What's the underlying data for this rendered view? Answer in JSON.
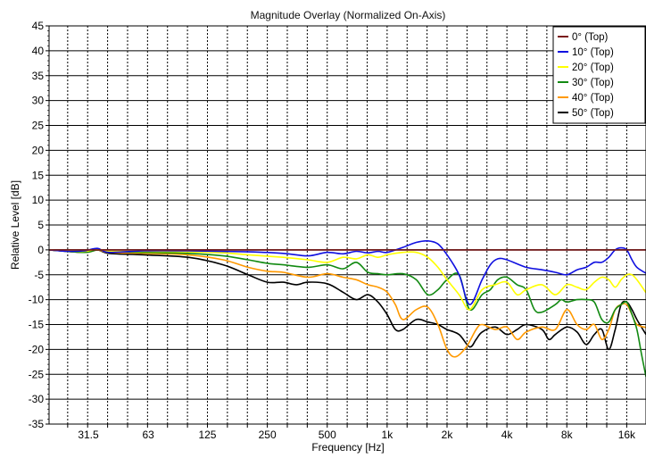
{
  "chart_data": {
    "type": "line",
    "title": "Magnitude Overlay (Normalized On-Axis)",
    "xlabel": "Frequency [Hz]",
    "ylabel": "Relative Level [dB]",
    "xscale": "log",
    "xlim": [
      20,
      20000
    ],
    "ylim": [
      -35,
      45
    ],
    "xticks": [
      {
        "value": 31.5,
        "label": "31.5"
      },
      {
        "value": 63,
        "label": "63"
      },
      {
        "value": 125,
        "label": "125"
      },
      {
        "value": 250,
        "label": "250"
      },
      {
        "value": 500,
        "label": "500"
      },
      {
        "value": 1000,
        "label": "1k"
      },
      {
        "value": 2000,
        "label": "2k"
      },
      {
        "value": 4000,
        "label": "4k"
      },
      {
        "value": 8000,
        "label": "8k"
      },
      {
        "value": 16000,
        "label": "16k"
      }
    ],
    "yticks": [
      45,
      40,
      35,
      30,
      25,
      20,
      15,
      10,
      5,
      0,
      -5,
      -10,
      -15,
      -20,
      -25,
      -30,
      -35
    ],
    "grid": true,
    "legend_position": "top-right",
    "series": [
      {
        "name": "0° (Top)",
        "color": "#7a1a1a",
        "points": [
          [
            20,
            0
          ],
          [
            20000,
            0
          ]
        ]
      },
      {
        "name": "10° (Top)",
        "color": "#1010e0",
        "points": [
          [
            20,
            0
          ],
          [
            25,
            -0.3
          ],
          [
            30,
            -0.2
          ],
          [
            35,
            0.3
          ],
          [
            40,
            -0.5
          ],
          [
            60,
            -0.2
          ],
          [
            100,
            -0.2
          ],
          [
            200,
            -0.4
          ],
          [
            300,
            -0.7
          ],
          [
            400,
            -1.2
          ],
          [
            500,
            -0.5
          ],
          [
            600,
            -0.8
          ],
          [
            700,
            -0.3
          ],
          [
            800,
            -0.6
          ],
          [
            900,
            -0.3
          ],
          [
            1000,
            -0.5
          ],
          [
            1200,
            0.5
          ],
          [
            1400,
            1.5
          ],
          [
            1600,
            1.8
          ],
          [
            1800,
            1.2
          ],
          [
            2000,
            -1
          ],
          [
            2300,
            -5
          ],
          [
            2600,
            -11
          ],
          [
            3000,
            -6
          ],
          [
            3300,
            -3
          ],
          [
            3600,
            -1.8
          ],
          [
            4000,
            -2
          ],
          [
            5000,
            -3.5
          ],
          [
            6000,
            -4
          ],
          [
            7000,
            -4.5
          ],
          [
            8000,
            -5
          ],
          [
            9000,
            -4
          ],
          [
            10000,
            -3.5
          ],
          [
            11000,
            -2.5
          ],
          [
            12000,
            -2.5
          ],
          [
            13000,
            -1.5
          ],
          [
            14000,
            0
          ],
          [
            15000,
            0.4
          ],
          [
            16000,
            0
          ],
          [
            17000,
            -2
          ],
          [
            18000,
            -3.5
          ],
          [
            20000,
            -4.7
          ]
        ]
      },
      {
        "name": "20° (Top)",
        "color": "#ffff00",
        "points": [
          [
            20,
            0
          ],
          [
            30,
            -0.3
          ],
          [
            35,
            0.2
          ],
          [
            40,
            -0.3
          ],
          [
            60,
            -0.3
          ],
          [
            100,
            -0.4
          ],
          [
            150,
            -0.6
          ],
          [
            200,
            -1
          ],
          [
            300,
            -1.5
          ],
          [
            400,
            -2
          ],
          [
            500,
            -2.5
          ],
          [
            600,
            -1.5
          ],
          [
            700,
            -1.8
          ],
          [
            800,
            -1
          ],
          [
            900,
            -1.5
          ],
          [
            1000,
            -1
          ],
          [
            1200,
            -0.5
          ],
          [
            1400,
            -0.5
          ],
          [
            1600,
            -1.5
          ],
          [
            1800,
            -3.5
          ],
          [
            2000,
            -6
          ],
          [
            2300,
            -9
          ],
          [
            2600,
            -12
          ],
          [
            3000,
            -8
          ],
          [
            3500,
            -7
          ],
          [
            4000,
            -6.5
          ],
          [
            4500,
            -9
          ],
          [
            5000,
            -8
          ],
          [
            6000,
            -7
          ],
          [
            7000,
            -9
          ],
          [
            8000,
            -7
          ],
          [
            9000,
            -7.5
          ],
          [
            10000,
            -8
          ],
          [
            11000,
            -6.5
          ],
          [
            12000,
            -5.5
          ],
          [
            13000,
            -6
          ],
          [
            14000,
            -7.5
          ],
          [
            15000,
            -6
          ],
          [
            16000,
            -5
          ],
          [
            17000,
            -5
          ],
          [
            18000,
            -6
          ],
          [
            20000,
            -8.6
          ]
        ]
      },
      {
        "name": "30° (Top)",
        "color": "#128a12",
        "points": [
          [
            20,
            0
          ],
          [
            30,
            -0.5
          ],
          [
            35,
            0
          ],
          [
            40,
            -0.3
          ],
          [
            60,
            -0.5
          ],
          [
            100,
            -0.7
          ],
          [
            150,
            -1.2
          ],
          [
            200,
            -2
          ],
          [
            250,
            -2.7
          ],
          [
            300,
            -3
          ],
          [
            400,
            -3.5
          ],
          [
            500,
            -3
          ],
          [
            600,
            -3.8
          ],
          [
            700,
            -2.5
          ],
          [
            800,
            -4.5
          ],
          [
            900,
            -4.8
          ],
          [
            1000,
            -5
          ],
          [
            1200,
            -4.8
          ],
          [
            1400,
            -6
          ],
          [
            1600,
            -9
          ],
          [
            1800,
            -8
          ],
          [
            2000,
            -6
          ],
          [
            2300,
            -5
          ],
          [
            2600,
            -12
          ],
          [
            3000,
            -9
          ],
          [
            3300,
            -8
          ],
          [
            3600,
            -6
          ],
          [
            4000,
            -5.5
          ],
          [
            4500,
            -7
          ],
          [
            5000,
            -8
          ],
          [
            5500,
            -12
          ],
          [
            6000,
            -12.5
          ],
          [
            7000,
            -11
          ],
          [
            7500,
            -10
          ],
          [
            8000,
            -10.5
          ],
          [
            9000,
            -10
          ],
          [
            10000,
            -10
          ],
          [
            11000,
            -10.5
          ],
          [
            12000,
            -14
          ],
          [
            13000,
            -14.5
          ],
          [
            14000,
            -12
          ],
          [
            15000,
            -11
          ],
          [
            16000,
            -10.5
          ],
          [
            17000,
            -13
          ],
          [
            18000,
            -16
          ],
          [
            19000,
            -21
          ],
          [
            20000,
            -25.5
          ]
        ]
      },
      {
        "name": "40° (Top)",
        "color": "#ff9900",
        "points": [
          [
            20,
            0
          ],
          [
            30,
            -0.5
          ],
          [
            35,
            0
          ],
          [
            40,
            -0.5
          ],
          [
            60,
            -0.7
          ],
          [
            100,
            -1
          ],
          [
            150,
            -2
          ],
          [
            200,
            -3.5
          ],
          [
            250,
            -4.3
          ],
          [
            300,
            -4.5
          ],
          [
            400,
            -5.5
          ],
          [
            500,
            -4.8
          ],
          [
            600,
            -5.5
          ],
          [
            700,
            -6
          ],
          [
            800,
            -7
          ],
          [
            900,
            -7.5
          ],
          [
            1000,
            -8.5
          ],
          [
            1100,
            -11
          ],
          [
            1200,
            -14
          ],
          [
            1400,
            -12
          ],
          [
            1600,
            -11.5
          ],
          [
            1800,
            -15
          ],
          [
            2000,
            -20
          ],
          [
            2200,
            -21.5
          ],
          [
            2500,
            -19.5
          ],
          [
            2800,
            -16
          ],
          [
            3000,
            -15
          ],
          [
            3500,
            -16
          ],
          [
            4000,
            -15.5
          ],
          [
            4500,
            -18
          ],
          [
            5000,
            -16.5
          ],
          [
            6000,
            -15.5
          ],
          [
            7000,
            -16
          ],
          [
            8000,
            -12
          ],
          [
            9000,
            -15
          ],
          [
            10000,
            -16
          ],
          [
            11000,
            -15
          ],
          [
            12000,
            -18
          ],
          [
            13000,
            -16
          ],
          [
            14000,
            -12
          ],
          [
            15000,
            -11
          ],
          [
            16000,
            -11
          ],
          [
            17000,
            -13
          ],
          [
            18000,
            -15
          ],
          [
            20000,
            -15.6
          ]
        ]
      },
      {
        "name": "50° (Top)",
        "color": "#000000",
        "points": [
          [
            20,
            0
          ],
          [
            30,
            -0.5
          ],
          [
            35,
            0
          ],
          [
            40,
            -0.7
          ],
          [
            60,
            -1
          ],
          [
            100,
            -1.5
          ],
          [
            150,
            -3
          ],
          [
            200,
            -5
          ],
          [
            250,
            -6.5
          ],
          [
            300,
            -6.5
          ],
          [
            350,
            -7
          ],
          [
            400,
            -6.5
          ],
          [
            500,
            -6.8
          ],
          [
            600,
            -8.5
          ],
          [
            700,
            -10
          ],
          [
            800,
            -9
          ],
          [
            900,
            -10.5
          ],
          [
            1000,
            -13
          ],
          [
            1100,
            -16
          ],
          [
            1200,
            -16
          ],
          [
            1400,
            -14
          ],
          [
            1600,
            -14.5
          ],
          [
            1800,
            -15
          ],
          [
            2000,
            -16
          ],
          [
            2300,
            -17
          ],
          [
            2600,
            -19.5
          ],
          [
            2800,
            -18
          ],
          [
            3000,
            -16.5
          ],
          [
            3500,
            -15.5
          ],
          [
            4000,
            -17
          ],
          [
            4500,
            -16
          ],
          [
            5000,
            -15
          ],
          [
            6000,
            -16
          ],
          [
            6500,
            -18
          ],
          [
            7000,
            -17
          ],
          [
            8000,
            -15.5
          ],
          [
            9000,
            -16.5
          ],
          [
            10000,
            -19
          ],
          [
            11000,
            -17
          ],
          [
            12000,
            -16
          ],
          [
            13000,
            -20
          ],
          [
            14000,
            -16
          ],
          [
            15000,
            -11
          ],
          [
            16000,
            -10.5
          ],
          [
            17000,
            -12
          ],
          [
            18000,
            -14
          ],
          [
            20000,
            -17
          ]
        ]
      }
    ]
  }
}
